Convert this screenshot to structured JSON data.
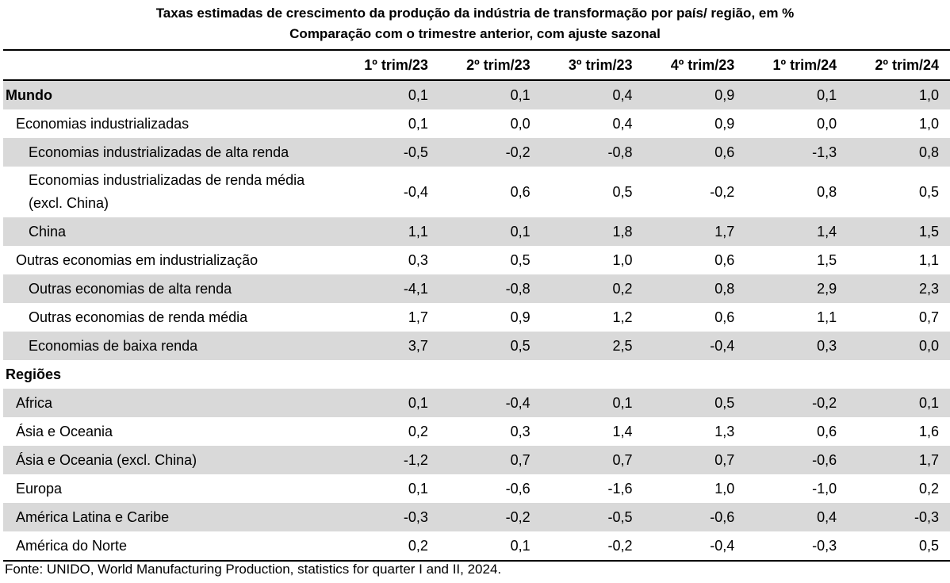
{
  "title": {
    "line1": "Taxas estimadas de crescimento da produção da indústria de transformação por país/ região, em %",
    "line2": "Comparação com o trimestre anterior, com ajuste sazonal"
  },
  "columns": [
    "",
    "1º trim/23",
    "2º trim/23",
    "3º trim/23",
    "4º trim/23",
    "1º trim/24",
    "2º trim/24"
  ],
  "rows": [
    {
      "label": "Mundo",
      "values": [
        "0,1",
        "0,1",
        "0,4",
        "0,9",
        "0,1",
        "1,0"
      ]
    },
    {
      "label": "Economias industrializadas",
      "values": [
        "0,1",
        "0,0",
        "0,4",
        "0,9",
        "0,0",
        "1,0"
      ]
    },
    {
      "label": "Economias industrializadas de alta renda",
      "values": [
        "-0,5",
        "-0,2",
        "-0,8",
        "0,6",
        "-1,3",
        "0,8"
      ]
    },
    {
      "label": "Economias industrializadas de renda média (excl. China)",
      "values": [
        "-0,4",
        "0,6",
        "0,5",
        "-0,2",
        "0,8",
        "0,5"
      ]
    },
    {
      "label": "China",
      "values": [
        "1,1",
        "0,1",
        "1,8",
        "1,7",
        "1,4",
        "1,5"
      ]
    },
    {
      "label": "Outras economias em industrialização",
      "values": [
        "0,3",
        "0,5",
        "1,0",
        "0,6",
        "1,5",
        "1,1"
      ]
    },
    {
      "label": "Outras economias de alta renda",
      "values": [
        "-4,1",
        "-0,8",
        "0,2",
        "0,8",
        "2,9",
        "2,3"
      ]
    },
    {
      "label": "Outras economias de renda média",
      "values": [
        "1,7",
        "0,9",
        "1,2",
        "0,6",
        "1,1",
        "0,7"
      ]
    },
    {
      "label": "Economias de baixa renda",
      "values": [
        "3,7",
        "0,5",
        "2,5",
        "-0,4",
        "0,3",
        "0,0"
      ]
    },
    {
      "label": "Regiões",
      "values": [
        "",
        "",
        "",
        "",
        "",
        ""
      ]
    },
    {
      "label": "Africa",
      "values": [
        "0,1",
        "-0,4",
        "0,1",
        "0,5",
        "-0,2",
        "0,1"
      ]
    },
    {
      "label": "Ásia e Oceania",
      "values": [
        "0,2",
        "0,3",
        "1,4",
        "1,3",
        "0,6",
        "1,6"
      ]
    },
    {
      "label": "Ásia e Oceania (excl. China)",
      "values": [
        "-1,2",
        "0,7",
        "0,7",
        "0,7",
        "-0,6",
        "1,7"
      ]
    },
    {
      "label": "Europa",
      "values": [
        "0,1",
        "-0,6",
        "-1,6",
        "1,0",
        "-1,0",
        "0,2"
      ]
    },
    {
      "label": "América Latina e Caribe",
      "values": [
        "-0,3",
        "-0,2",
        "-0,5",
        "-0,6",
        "0,4",
        "-0,3"
      ]
    },
    {
      "label": "América do Norte",
      "values": [
        "0,2",
        "0,1",
        "-0,2",
        "-0,4",
        "-0,3",
        "0,5"
      ]
    }
  ],
  "source": "Fonte: UNIDO, World Manufacturing Production, statistics for quarter I and II, 2024.",
  "colors": {
    "shade": "#d9d9d9",
    "text": "#000000",
    "background": "#ffffff"
  }
}
